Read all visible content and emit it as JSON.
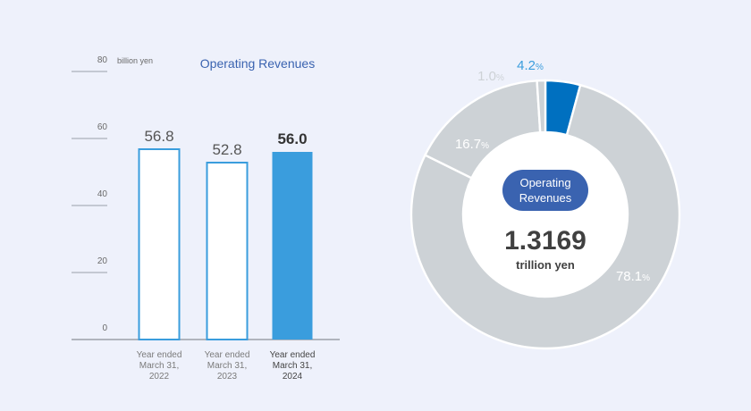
{
  "chart_data": [
    {
      "type": "bar",
      "title": "Operating Revenues",
      "unit": "billion yen",
      "categories": [
        [
          "Year ended",
          "March 31,",
          "2022"
        ],
        [
          "Year ended",
          "March 31,",
          "2023"
        ],
        [
          "Year ended",
          "March 31,",
          "2024"
        ]
      ],
      "values": [
        56.8,
        52.8,
        56.0
      ],
      "value_labels": [
        "56.8",
        "52.8",
        "56.0"
      ],
      "highlight_index": 2,
      "ylim": [
        0,
        80
      ],
      "yticks": [
        0,
        20,
        40,
        60,
        80
      ],
      "colors": {
        "bar_outline": "#3a9ddd",
        "bar_fill": "#ffffff",
        "highlight_fill": "#3a9ddd"
      }
    },
    {
      "type": "pie",
      "style": "donut",
      "center_label": [
        "Operating",
        "Revenues"
      ],
      "center_value": "1.3169",
      "center_unit": "trillion yen",
      "slices": [
        {
          "value": 4.2,
          "label": "4.2",
          "color": "#0070c0",
          "label_color": "#3a9ddd"
        },
        {
          "value": 78.1,
          "label": "78.1",
          "color": "#cdd2d6",
          "label_color": "#ffffff"
        },
        {
          "value": 16.7,
          "label": "16.7",
          "color": "#cdd2d6",
          "label_color": "#ffffff"
        },
        {
          "value": 1.0,
          "label": "1.0",
          "color": "#cdd2d6",
          "label_color": "#cdd2d6"
        }
      ],
      "percent_symbol": "%",
      "pill_color": "#3a63b0"
    }
  ]
}
